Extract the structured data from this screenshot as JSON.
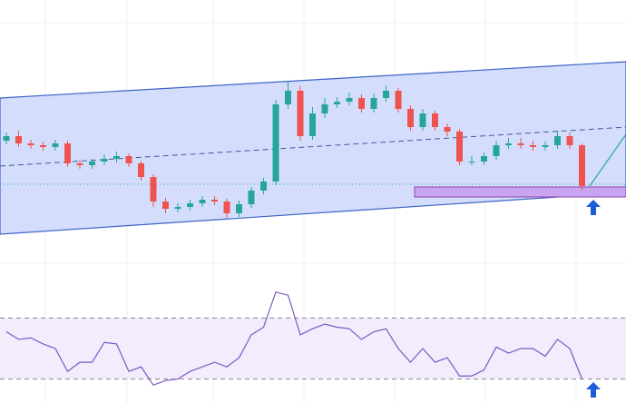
{
  "chart_data": [
    {
      "type": "candlestick",
      "ylim": [
        0,
        300
      ],
      "up_color": "#26a69a",
      "down_color": "#ef5350",
      "open": [
        145,
        150,
        142,
        140,
        138,
        142,
        120,
        118,
        122,
        125,
        128,
        120,
        105,
        78,
        70,
        72,
        76,
        80,
        78,
        65,
        75,
        90,
        100,
        185,
        200,
        150,
        175,
        185,
        188,
        192,
        180,
        192,
        200,
        180,
        160,
        175,
        160,
        155,
        122,
        122,
        128,
        140,
        142,
        140,
        138,
        140,
        150,
        140
      ],
      "high": [
        154,
        156,
        146,
        144,
        146,
        145,
        124,
        125,
        130,
        133,
        131,
        123,
        108,
        82,
        76,
        80,
        84,
        84,
        81,
        79,
        94,
        104,
        190,
        210,
        205,
        182,
        192,
        193,
        198,
        196,
        197,
        206,
        203,
        184,
        180,
        178,
        164,
        158,
        128,
        132,
        145,
        148,
        148,
        145,
        144,
        156,
        154,
        142
      ],
      "low": [
        141,
        138,
        136,
        134,
        134,
        116,
        114,
        114,
        118,
        121,
        116,
        101,
        72,
        65,
        66,
        68,
        72,
        74,
        60,
        61,
        71,
        86,
        96,
        180,
        145,
        146,
        170,
        181,
        184,
        176,
        176,
        188,
        176,
        156,
        156,
        156,
        150,
        118,
        118,
        118,
        124,
        136,
        136,
        134,
        134,
        136,
        136,
        90
      ],
      "close": [
        150,
        142,
        140,
        138,
        142,
        120,
        118,
        122,
        125,
        128,
        120,
        105,
        78,
        70,
        72,
        76,
        80,
        78,
        65,
        75,
        90,
        100,
        185,
        200,
        150,
        175,
        185,
        188,
        192,
        180,
        192,
        200,
        180,
        160,
        175,
        160,
        155,
        122,
        122,
        128,
        140,
        142,
        140,
        138,
        140,
        150,
        140,
        95
      ]
    },
    {
      "type": "line",
      "ylim": [
        0,
        100
      ],
      "levels": [
        70,
        30
      ],
      "color": "#7e57c2",
      "values": [
        61,
        56,
        57,
        53,
        50,
        35,
        41,
        41,
        54,
        53,
        35,
        38,
        26,
        29,
        30,
        35,
        38,
        41,
        38,
        44,
        59,
        64,
        87,
        85,
        59,
        63,
        66,
        64,
        63,
        56,
        61,
        63,
        50,
        41,
        50,
        41,
        44,
        32,
        32,
        36,
        51,
        47,
        50,
        50,
        45,
        56,
        50,
        30
      ]
    }
  ]
}
